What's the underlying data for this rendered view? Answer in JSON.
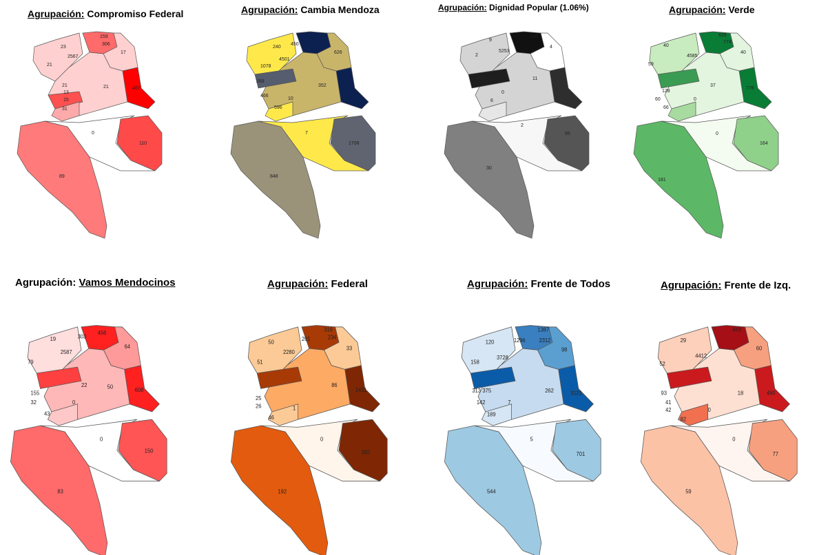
{
  "panels": [
    {
      "id": "compromiso-federal",
      "prefix": "Agrupación:",
      "party": "Compromiso Federal",
      "colors": {
        "strong": "#ff0000",
        "mid": "#ff7a7a",
        "light": "#ffd0d0",
        "pale": "#ffffff"
      },
      "labels": {
        "north": [
          "23",
          "159",
          "306",
          "17",
          "2567",
          "21",
          "21",
          "21",
          "13",
          "15",
          "31",
          "487"
        ],
        "center": "0",
        "east": "110",
        "south": "89"
      }
    },
    {
      "id": "cambia-mendoza",
      "prefix": "Agrupación:",
      "party": "Cambia Mendoza",
      "colors": {
        "strong": "#0d2150",
        "mid": "#c9b56a",
        "light": "#ffe94a",
        "pale": "#ffffff"
      },
      "labels": {
        "north": [
          "240",
          "450",
          "626",
          "4501",
          "1078",
          "352",
          "268",
          "466",
          "10",
          "596"
        ],
        "center": "7",
        "east": "1706",
        "south": "848"
      }
    },
    {
      "id": "dignidad-popular",
      "prefix": "Agrupación:",
      "party": "Dignidad Popular (1.06%)",
      "colors": {
        "strong": "#111111",
        "mid": "#7a7a7a",
        "light": "#d4d4d4",
        "pale": "#f7f7f7"
      },
      "labels": {
        "north": [
          "9",
          "142",
          "4",
          "2",
          "5253",
          "107",
          "11",
          "0",
          "6"
        ],
        "center": "2",
        "east": "65",
        "south": "30"
      }
    },
    {
      "id": "verde",
      "prefix": "Agrupación:",
      "party": "Verde",
      "colors": {
        "strong": "#097c36",
        "mid": "#5cb866",
        "light": "#c9ebc0",
        "pale": "#f4fbf1"
      },
      "labels": {
        "north": [
          "40",
          "625",
          "774",
          "40",
          "4585",
          "59",
          "37",
          "776",
          "128",
          "66",
          "0",
          "60"
        ],
        "center": "0",
        "east": "164",
        "south": "181"
      }
    },
    {
      "id": "vamos-mendocinos",
      "prefix": "Agrupación:",
      "party": "Vamos Mendocinos",
      "colors": {
        "strong": "#ff2020",
        "mid": "#ff6b6b",
        "light": "#ffb8b8",
        "pale": "#ffffff"
      },
      "labels": {
        "north": [
          "19",
          "303",
          "456",
          "64",
          "2587",
          "79",
          "50",
          "608",
          "155",
          "32",
          "0",
          "43",
          "22"
        ],
        "center": "0",
        "east": "150",
        "south": "83"
      }
    },
    {
      "id": "federal",
      "prefix": "Agrupación:",
      "party": "Federal",
      "colors": {
        "strong": "#7f2604",
        "mid": "#e35b0e",
        "light": "#fbca96",
        "pale": "#fff5eb"
      },
      "labels": {
        "north": [
          "50",
          "201",
          "316",
          "234",
          "33",
          "2280",
          "51",
          "86",
          "1421",
          "25",
          "26",
          "46",
          "1"
        ],
        "center": "0",
        "east": "382",
        "south": "192"
      }
    },
    {
      "id": "frente-de-todos",
      "prefix": "Agrupación:",
      "party": "Frente de Todos",
      "colors": {
        "strong": "#0b5ca8",
        "mid": "#9ec9e2",
        "light": "#d6e6f4",
        "pale": "#f7fbff"
      },
      "labels": {
        "north": [
          "120",
          "1387",
          "1296",
          "2312",
          "98",
          "3728",
          "158",
          "262",
          "3121",
          "313",
          "375",
          "142",
          "189",
          "7"
        ],
        "center": "5",
        "east": "701",
        "south": "544"
      }
    },
    {
      "id": "frente-de-izq",
      "prefix": "Agrupación:",
      "party": "Frente de Izq.",
      "colors": {
        "strong": "#cb1a1d",
        "mid": "#f7a07f",
        "light": "#fdd0bb",
        "pale": "#fff5f0"
      },
      "labels": {
        "north": [
          "29",
          "443",
          "60",
          "4412",
          "52",
          "18",
          "480",
          "93",
          "41",
          "42",
          "82",
          "0"
        ],
        "center": "0",
        "east": "77",
        "south": "59"
      }
    }
  ]
}
